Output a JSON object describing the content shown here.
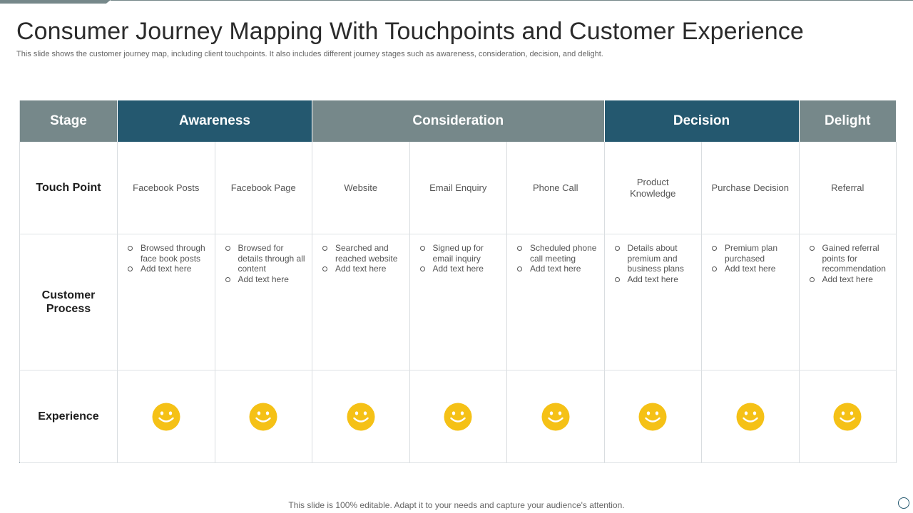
{
  "slide": {
    "title": "Consumer Journey Mapping With Touchpoints and Customer Experience",
    "subtitle": "This slide shows the customer journey map, including client touchpoints. It also includes different journey stages such as awareness, consideration, decision, and delight.",
    "footer": "This slide is 100% editable. Adapt it to your needs and capture your audience's attention."
  },
  "table": {
    "stage_label": "Stage",
    "stages": [
      {
        "name": "Awareness",
        "span": 2,
        "color": "#24586f"
      },
      {
        "name": "Consideration",
        "span": 3,
        "color": "#76888a"
      },
      {
        "name": "Decision",
        "span": 2,
        "color": "#24586f"
      },
      {
        "name": "Delight",
        "span": 1,
        "color": "#76888a"
      }
    ],
    "row_labels": {
      "touch_point": "Touch Point",
      "customer_process": "Customer Process",
      "experience": "Experience"
    },
    "touchpoints": [
      "Facebook Posts",
      "Facebook Page",
      "Website",
      "Email Enquiry",
      "Phone Call",
      "Product Knowledge",
      "Purchase Decision",
      "Referral"
    ],
    "processes": [
      [
        "Browsed through face book posts",
        "Add text here"
      ],
      [
        "Browsed for details through all content",
        "Add text here"
      ],
      [
        "Searched and reached website",
        "Add text here"
      ],
      [
        "Signed up for email inquiry",
        "Add text here"
      ],
      [
        "Scheduled phone call meeting",
        "Add text here"
      ],
      [
        "Details about premium and business plans",
        "Add text here"
      ],
      [
        "Premium plan purchased",
        "Add text here"
      ],
      [
        "Gained referral points for recommendation",
        "Add text here"
      ]
    ],
    "experience_icons": [
      "smiley-icon",
      "smiley-icon",
      "smiley-icon",
      "smiley-icon",
      "smiley-icon",
      "smiley-icon",
      "smiley-icon",
      "smiley-icon"
    ]
  },
  "colors": {
    "header_gray": "#76888a",
    "header_blue": "#24586f",
    "smiley_fill": "#f5c116"
  }
}
